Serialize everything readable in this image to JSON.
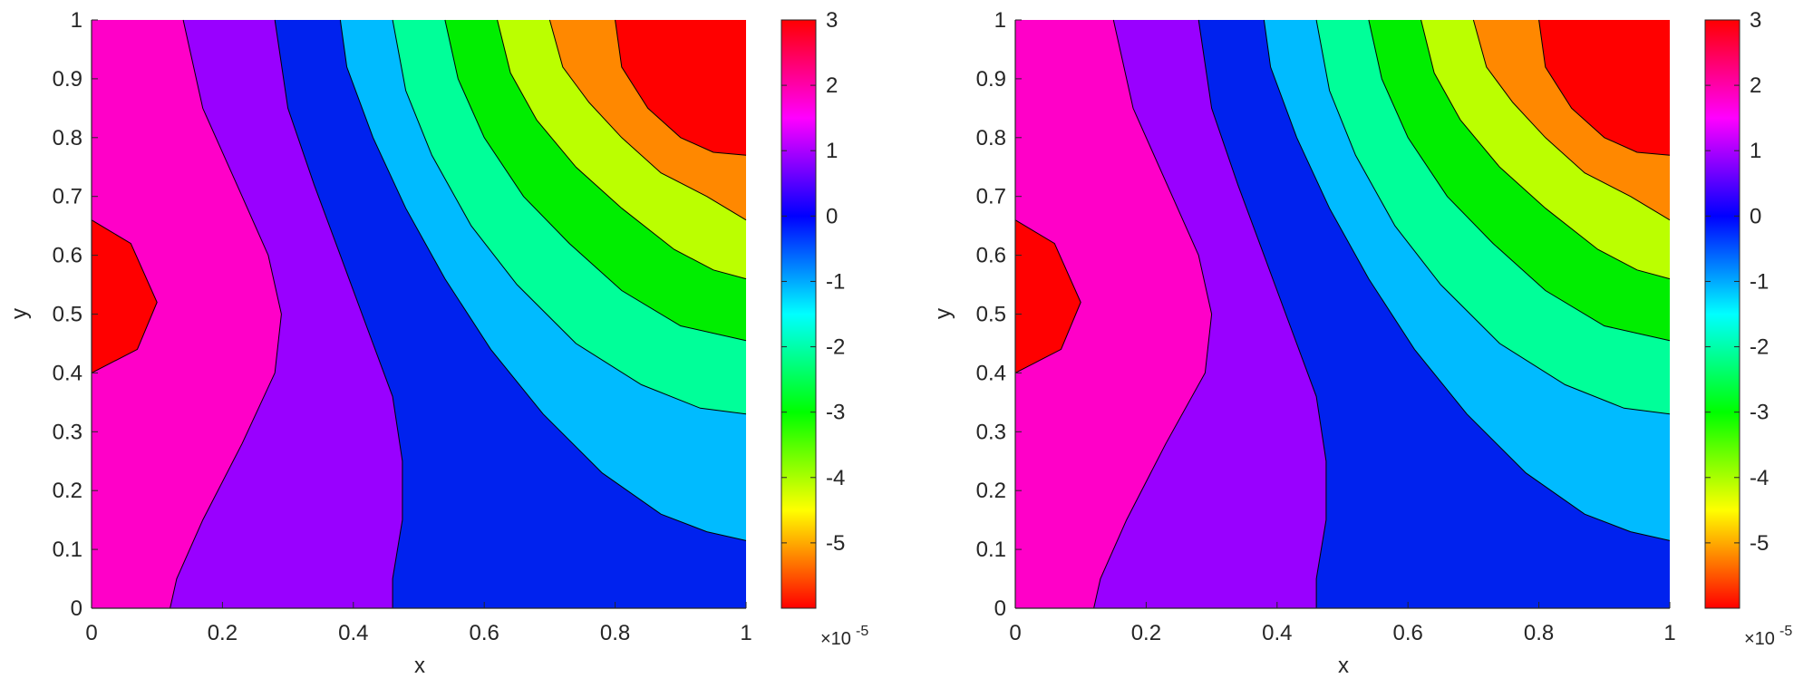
{
  "chart_data": [
    {
      "type": "contourf",
      "title": "",
      "xlabel": "x",
      "ylabel": "y",
      "xlim": [
        0,
        1
      ],
      "ylim": [
        0,
        1
      ],
      "x_ticks": [
        "0",
        "0.2",
        "0.4",
        "0.6",
        "0.8",
        "1"
      ],
      "y_ticks": [
        "0",
        "0.1",
        "0.2",
        "0.3",
        "0.4",
        "0.5",
        "0.6",
        "0.7",
        "0.8",
        "0.9",
        "1"
      ],
      "colorbar": {
        "range": [
          -6,
          3
        ],
        "ticks": [
          "3",
          "2",
          "1",
          "0",
          "-1",
          "-2",
          "-3",
          "-4",
          "-5"
        ],
        "exponent_label": "×10",
        "exponent_power": "-5",
        "colormap": "hsv (red-magenta-blue-cyan-green-yellow-red)"
      },
      "contour_levels": [
        -5,
        -4,
        -3,
        -2,
        -1,
        0,
        1,
        2
      ],
      "contour_lines": [
        {
          "level": 2,
          "points": [
            [
              0,
              0.66
            ],
            [
              0.06,
              0.62
            ],
            [
              0.1,
              0.52
            ],
            [
              0.07,
              0.44
            ],
            [
              0,
              0.4
            ]
          ]
        },
        {
          "level": 1,
          "points": [
            [
              0.14,
              1
            ],
            [
              0.17,
              0.85
            ],
            [
              0.23,
              0.7
            ],
            [
              0.27,
              0.6
            ],
            [
              0.29,
              0.5
            ],
            [
              0.28,
              0.4
            ],
            [
              0.23,
              0.28
            ],
            [
              0.17,
              0.15
            ],
            [
              0.13,
              0.05
            ],
            [
              0.12,
              0
            ]
          ]
        },
        {
          "level": 0,
          "points": [
            [
              0.28,
              1
            ],
            [
              0.3,
              0.85
            ],
            [
              0.34,
              0.72
            ],
            [
              0.38,
              0.6
            ],
            [
              0.42,
              0.48
            ],
            [
              0.46,
              0.36
            ],
            [
              0.475,
              0.25
            ],
            [
              0.475,
              0.15
            ],
            [
              0.46,
              0.05
            ],
            [
              0.46,
              0
            ]
          ]
        },
        {
          "level": -1,
          "points": [
            [
              0.38,
              1
            ],
            [
              0.39,
              0.92
            ],
            [
              0.43,
              0.8
            ],
            [
              0.48,
              0.68
            ],
            [
              0.54,
              0.56
            ],
            [
              0.61,
              0.44
            ],
            [
              0.69,
              0.33
            ],
            [
              0.78,
              0.23
            ],
            [
              0.87,
              0.16
            ],
            [
              0.94,
              0.13
            ],
            [
              1,
              0.115
            ]
          ]
        },
        {
          "level": -2,
          "points": [
            [
              0.46,
              1
            ],
            [
              0.48,
              0.88
            ],
            [
              0.52,
              0.77
            ],
            [
              0.58,
              0.65
            ],
            [
              0.65,
              0.55
            ],
            [
              0.74,
              0.45
            ],
            [
              0.84,
              0.38
            ],
            [
              0.93,
              0.34
            ],
            [
              1,
              0.33
            ]
          ]
        },
        {
          "level": -3,
          "points": [
            [
              0.54,
              1
            ],
            [
              0.56,
              0.9
            ],
            [
              0.6,
              0.8
            ],
            [
              0.66,
              0.7
            ],
            [
              0.73,
              0.62
            ],
            [
              0.81,
              0.54
            ],
            [
              0.9,
              0.48
            ],
            [
              1,
              0.455
            ]
          ]
        },
        {
          "level": -4,
          "points": [
            [
              0.62,
              1
            ],
            [
              0.64,
              0.91
            ],
            [
              0.68,
              0.83
            ],
            [
              0.74,
              0.75
            ],
            [
              0.81,
              0.68
            ],
            [
              0.89,
              0.61
            ],
            [
              0.95,
              0.575
            ],
            [
              1,
              0.56
            ]
          ]
        },
        {
          "level": -5,
          "points": [
            [
              0.7,
              1
            ],
            [
              0.72,
              0.92
            ],
            [
              0.76,
              0.86
            ],
            [
              0.81,
              0.8
            ],
            [
              0.87,
              0.74
            ],
            [
              0.94,
              0.7
            ],
            [
              1,
              0.66
            ]
          ]
        },
        {
          "level": -6,
          "points": [
            [
              0.8,
              1
            ],
            [
              0.81,
              0.92
            ],
            [
              0.85,
              0.85
            ],
            [
              0.9,
              0.8
            ],
            [
              0.95,
              0.775
            ],
            [
              1,
              0.77
            ]
          ]
        }
      ],
      "region_colors": [
        "#ff00c8",
        "#ff0000",
        "#9900ff",
        "#0022ee",
        "#00bbff",
        "#00ff99",
        "#00ee00",
        "#bbff00",
        "#ff8800",
        "#ff0000"
      ]
    },
    {
      "type": "contourf",
      "title": "",
      "xlabel": "x",
      "ylabel": "y",
      "xlim": [
        0,
        1
      ],
      "ylim": [
        0,
        1
      ],
      "x_ticks": [
        "0",
        "0.2",
        "0.4",
        "0.6",
        "0.8",
        "1"
      ],
      "y_ticks": [
        "0",
        "0.1",
        "0.2",
        "0.3",
        "0.4",
        "0.5",
        "0.6",
        "0.7",
        "0.8",
        "0.9",
        "1"
      ],
      "colorbar": {
        "range": [
          -6,
          3
        ],
        "ticks": [
          "3",
          "2",
          "1",
          "0",
          "-1",
          "-2",
          "-3",
          "-4",
          "-5"
        ],
        "exponent_label": "×10",
        "exponent_power": "-5",
        "colormap": "hsv (red-magenta-blue-cyan-green-yellow-red)"
      },
      "contour_levels": [
        -5,
        -4,
        -3,
        -2,
        -1,
        0,
        1,
        2
      ],
      "contour_lines": [
        {
          "level": 2,
          "points": [
            [
              0,
              0.66
            ],
            [
              0.06,
              0.62
            ],
            [
              0.1,
              0.52
            ],
            [
              0.07,
              0.44
            ],
            [
              0,
              0.4
            ]
          ]
        },
        {
          "level": 1,
          "points": [
            [
              0.15,
              1
            ],
            [
              0.18,
              0.85
            ],
            [
              0.24,
              0.7
            ],
            [
              0.28,
              0.6
            ],
            [
              0.3,
              0.5
            ],
            [
              0.29,
              0.4
            ],
            [
              0.23,
              0.28
            ],
            [
              0.17,
              0.15
            ],
            [
              0.13,
              0.05
            ],
            [
              0.12,
              0
            ]
          ]
        },
        {
          "level": 0,
          "points": [
            [
              0.28,
              1
            ],
            [
              0.3,
              0.85
            ],
            [
              0.34,
              0.72
            ],
            [
              0.38,
              0.6
            ],
            [
              0.42,
              0.48
            ],
            [
              0.46,
              0.36
            ],
            [
              0.475,
              0.25
            ],
            [
              0.475,
              0.15
            ],
            [
              0.46,
              0.05
            ],
            [
              0.46,
              0
            ]
          ]
        },
        {
          "level": -1,
          "points": [
            [
              0.38,
              1
            ],
            [
              0.39,
              0.92
            ],
            [
              0.43,
              0.8
            ],
            [
              0.48,
              0.68
            ],
            [
              0.54,
              0.56
            ],
            [
              0.61,
              0.44
            ],
            [
              0.69,
              0.33
            ],
            [
              0.78,
              0.23
            ],
            [
              0.87,
              0.16
            ],
            [
              0.94,
              0.13
            ],
            [
              1,
              0.115
            ]
          ]
        },
        {
          "level": -2,
          "points": [
            [
              0.46,
              1
            ],
            [
              0.48,
              0.88
            ],
            [
              0.52,
              0.77
            ],
            [
              0.58,
              0.65
            ],
            [
              0.65,
              0.55
            ],
            [
              0.74,
              0.45
            ],
            [
              0.84,
              0.38
            ],
            [
              0.93,
              0.34
            ],
            [
              1,
              0.33
            ]
          ]
        },
        {
          "level": -3,
          "points": [
            [
              0.54,
              1
            ],
            [
              0.56,
              0.9
            ],
            [
              0.6,
              0.8
            ],
            [
              0.66,
              0.7
            ],
            [
              0.73,
              0.62
            ],
            [
              0.81,
              0.54
            ],
            [
              0.9,
              0.48
            ],
            [
              1,
              0.455
            ]
          ]
        },
        {
          "level": -4,
          "points": [
            [
              0.62,
              1
            ],
            [
              0.64,
              0.91
            ],
            [
              0.68,
              0.83
            ],
            [
              0.74,
              0.75
            ],
            [
              0.81,
              0.68
            ],
            [
              0.89,
              0.61
            ],
            [
              0.95,
              0.575
            ],
            [
              1,
              0.56
            ]
          ]
        },
        {
          "level": -5,
          "points": [
            [
              0.7,
              1
            ],
            [
              0.72,
              0.92
            ],
            [
              0.76,
              0.86
            ],
            [
              0.81,
              0.8
            ],
            [
              0.87,
              0.74
            ],
            [
              0.94,
              0.7
            ],
            [
              1,
              0.66
            ]
          ]
        },
        {
          "level": -6,
          "points": [
            [
              0.8,
              1
            ],
            [
              0.81,
              0.92
            ],
            [
              0.85,
              0.85
            ],
            [
              0.9,
              0.8
            ],
            [
              0.95,
              0.775
            ],
            [
              1,
              0.77
            ]
          ]
        }
      ],
      "region_colors": [
        "#ff00c8",
        "#ff0000",
        "#9900ff",
        "#0022ee",
        "#00bbff",
        "#00ff99",
        "#00ee00",
        "#bbff00",
        "#ff8800",
        "#ff0000"
      ]
    }
  ]
}
